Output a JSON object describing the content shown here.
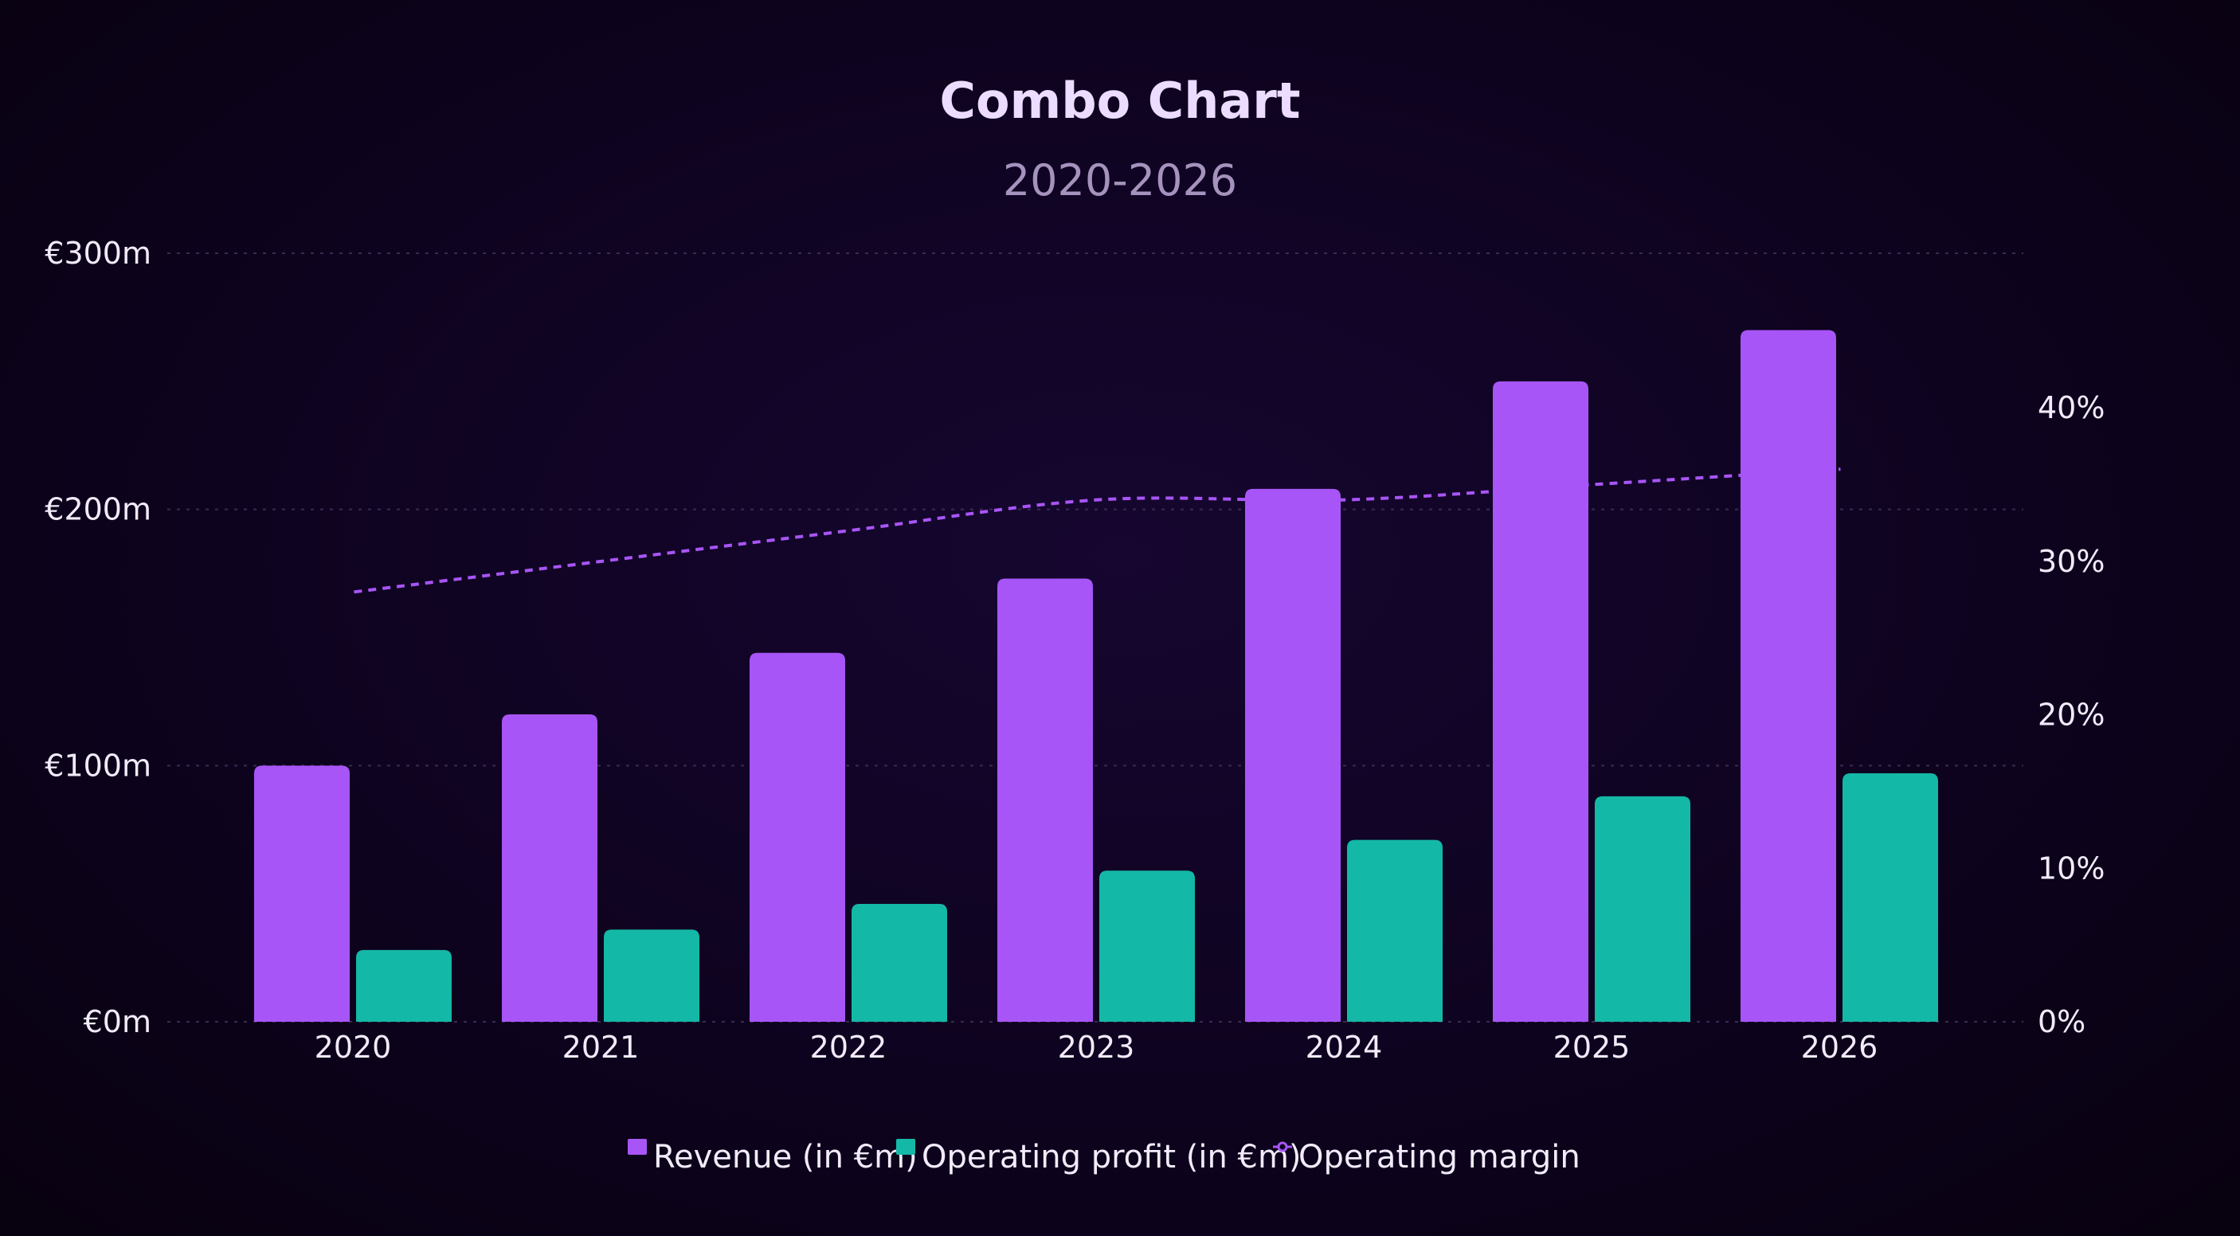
{
  "chart_data": {
    "type": "bar",
    "title": "Combo Chart",
    "subtitle": "2020-2026",
    "categories": [
      "2020",
      "2021",
      "2022",
      "2023",
      "2024",
      "2025",
      "2026"
    ],
    "series": [
      {
        "name": "Revenue (in €m)",
        "type": "bar",
        "axis": "left",
        "color": "#a855f7",
        "values": [
          100,
          120,
          144,
          173,
          208,
          250,
          270
        ]
      },
      {
        "name": "Operating profit (in €m)",
        "type": "bar",
        "axis": "left",
        "color": "#14b8a6",
        "values": [
          28,
          36,
          46,
          59,
          71,
          88,
          97
        ]
      },
      {
        "name": "Operating margin",
        "type": "line",
        "axis": "right",
        "color": "#a855f7",
        "line_style": "dashed",
        "values": [
          28,
          30,
          32,
          34,
          34,
          35,
          36
        ]
      }
    ],
    "y_left": {
      "ylim": [
        0,
        300
      ],
      "ticks": [
        0,
        100,
        200,
        300
      ],
      "tick_labels": [
        "€0m",
        "€100m",
        "€200m",
        "€300m"
      ]
    },
    "y_right": {
      "ylim": [
        0,
        50
      ],
      "ticks": [
        0,
        10,
        20,
        30,
        40
      ],
      "tick_labels": [
        "0%",
        "10%",
        "20%",
        "30%",
        "40%"
      ]
    },
    "grid": true,
    "legend": "bottom-center"
  }
}
